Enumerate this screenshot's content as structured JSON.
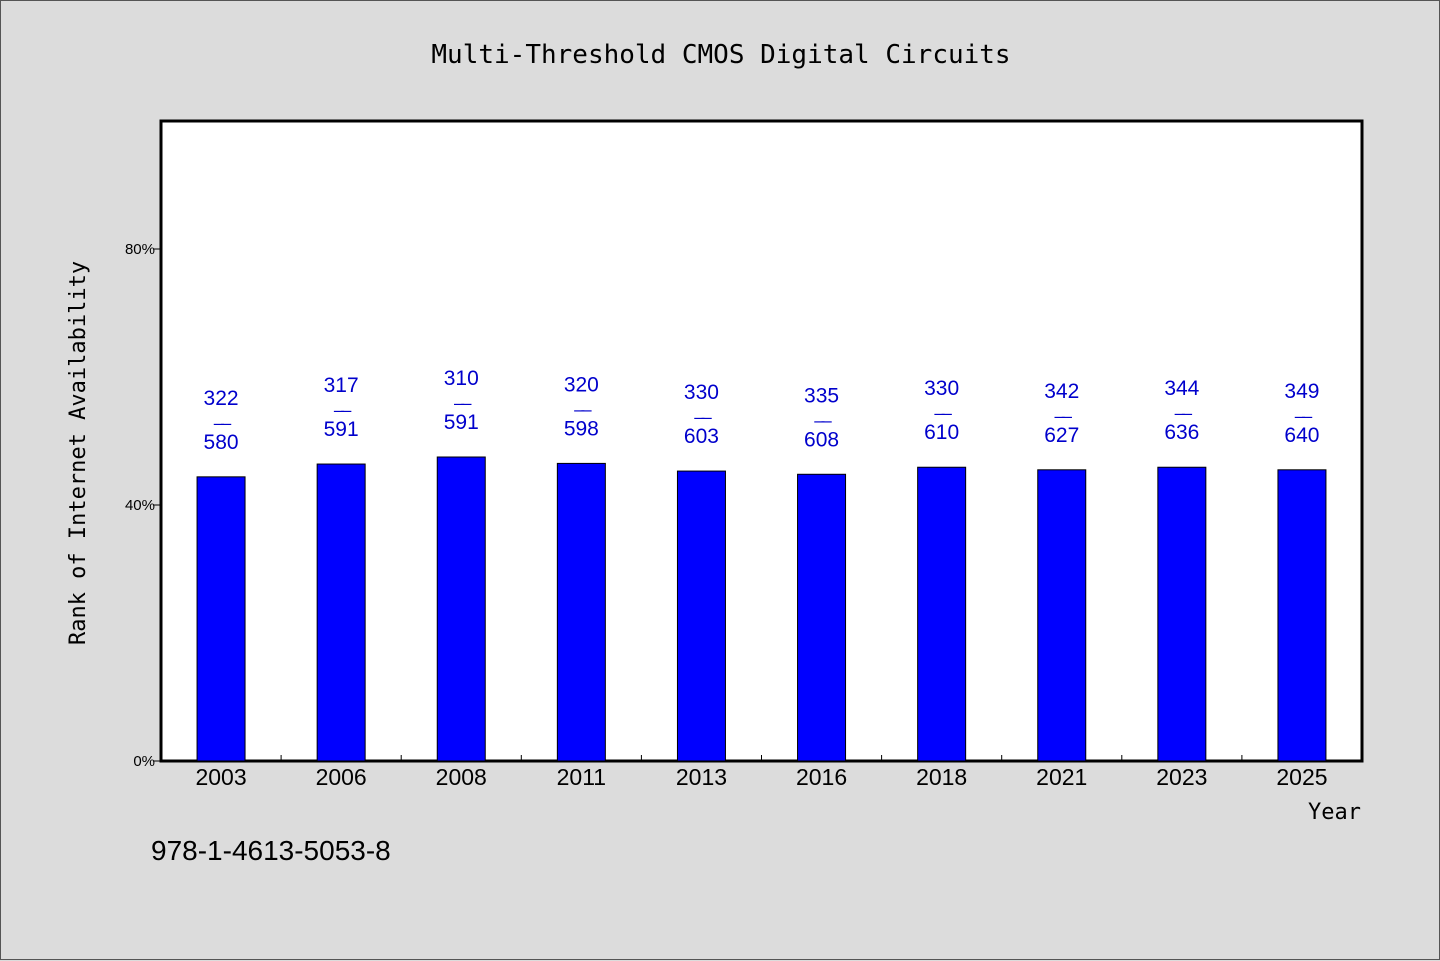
{
  "chart_data": {
    "type": "bar",
    "title": "Multi-Threshold CMOS Digital Circuits",
    "xlabel": "Year",
    "ylabel": "Rank of Internet Availability",
    "ylim": [
      0,
      100
    ],
    "yticks": [
      {
        "value": 0,
        "label": "0%"
      },
      {
        "value": 40,
        "label": "40%"
      },
      {
        "value": 80,
        "label": "80%"
      }
    ],
    "categories": [
      "2003",
      "2006",
      "2008",
      "2011",
      "2013",
      "2016",
      "2018",
      "2021",
      "2023",
      "2025"
    ],
    "values": [
      44.4,
      46.4,
      47.5,
      46.5,
      45.3,
      44.8,
      45.9,
      45.5,
      45.9,
      45.5
    ],
    "data_labels": [
      {
        "top": "322",
        "sep": "——",
        "bottom": "580"
      },
      {
        "top": "317",
        "sep": "——",
        "bottom": "591"
      },
      {
        "top": "310",
        "sep": "——",
        "bottom": "591"
      },
      {
        "top": "320",
        "sep": "——",
        "bottom": "598"
      },
      {
        "top": "330",
        "sep": "——",
        "bottom": "603"
      },
      {
        "top": "335",
        "sep": "——",
        "bottom": "608"
      },
      {
        "top": "330",
        "sep": "——",
        "bottom": "610"
      },
      {
        "top": "342",
        "sep": "——",
        "bottom": "627"
      },
      {
        "top": "344",
        "sep": "——",
        "bottom": "636"
      },
      {
        "top": "349",
        "sep": "——",
        "bottom": "640"
      }
    ],
    "bar_color": "#0000ff",
    "label_color": "#0000cc",
    "grid": false,
    "legend": "none"
  },
  "footer": {
    "isbn": "978-1-4613-5053-8"
  }
}
